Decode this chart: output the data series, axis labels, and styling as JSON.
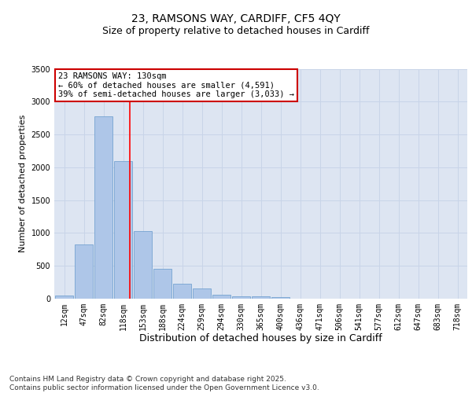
{
  "title_line1": "23, RAMSONS WAY, CARDIFF, CF5 4QY",
  "title_line2": "Size of property relative to detached houses in Cardiff",
  "xlabel": "Distribution of detached houses by size in Cardiff",
  "ylabel": "Number of detached properties",
  "categories": [
    "12sqm",
    "47sqm",
    "82sqm",
    "118sqm",
    "153sqm",
    "188sqm",
    "224sqm",
    "259sqm",
    "294sqm",
    "330sqm",
    "365sqm",
    "400sqm",
    "436sqm",
    "471sqm",
    "506sqm",
    "541sqm",
    "577sqm",
    "612sqm",
    "647sqm",
    "683sqm",
    "718sqm"
  ],
  "values": [
    50,
    830,
    2780,
    2100,
    1030,
    460,
    230,
    150,
    60,
    40,
    30,
    20,
    5,
    5,
    2,
    2,
    1,
    1,
    0,
    0,
    0
  ],
  "bar_color": "#aec6e8",
  "bar_edge_color": "#6699cc",
  "grid_color": "#c8d4e8",
  "background_color": "#dde5f2",
  "red_line_x": 3.33,
  "annotation_text": "23 RAMSONS WAY: 130sqm\n← 60% of detached houses are smaller (4,591)\n39% of semi-detached houses are larger (3,033) →",
  "annotation_box_edgecolor": "#cc0000",
  "ylim_max": 3500,
  "yticks": [
    0,
    500,
    1000,
    1500,
    2000,
    2500,
    3000,
    3500
  ],
  "footer_text": "Contains HM Land Registry data © Crown copyright and database right 2025.\nContains public sector information licensed under the Open Government Licence v3.0.",
  "title_fontsize": 10,
  "subtitle_fontsize": 9,
  "ylabel_fontsize": 8,
  "xlabel_fontsize": 9,
  "tick_fontsize": 7,
  "annotation_fontsize": 7.5,
  "footer_fontsize": 6.5
}
